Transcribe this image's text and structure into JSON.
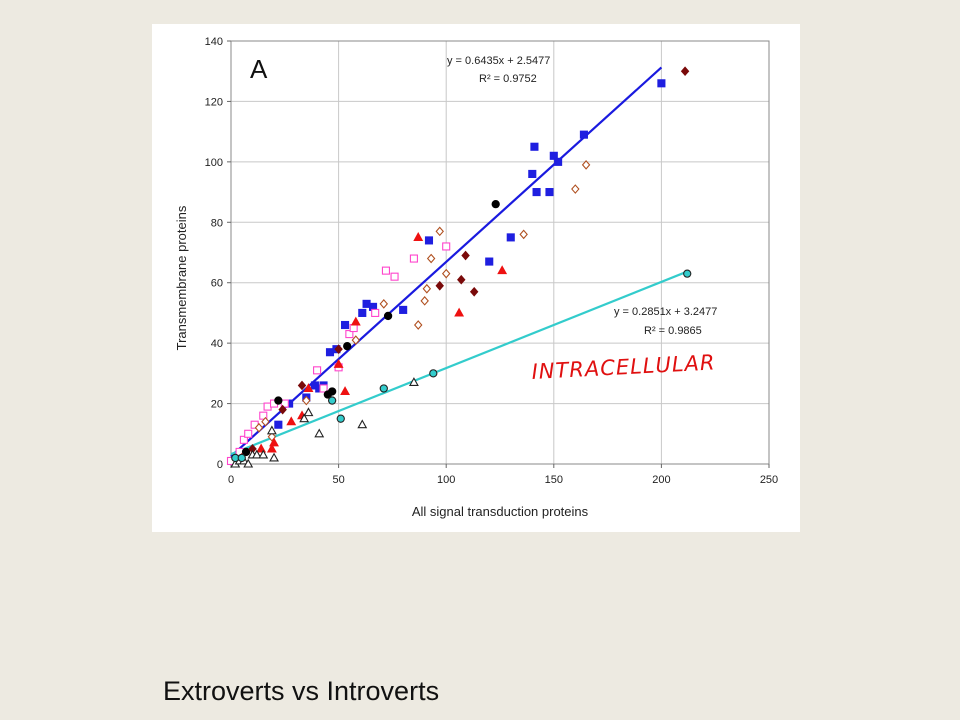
{
  "slide": {
    "caption": "Extroverts vs Introverts"
  },
  "chart_data": {
    "type": "scatter",
    "panel_label": "A",
    "xlabel": "All signal transduction proteins",
    "ylabel": "Transmembrane proteins",
    "xlim": [
      0,
      250
    ],
    "ylim": [
      0,
      140
    ],
    "x_ticks": [
      0,
      50,
      100,
      150,
      200,
      250
    ],
    "y_ticks": [
      0,
      20,
      40,
      60,
      80,
      100,
      120,
      140
    ],
    "grid": true,
    "annotations": {
      "eq_top": "y = 0.6435x + 2.5477",
      "r2_top": "R² = 0.9752",
      "eq_bottom": "y = 0.2851x + 3.2477",
      "r2_bottom": "R² = 0.9865",
      "handwritten": "INTRACELLULAR"
    },
    "trendlines": [
      {
        "slope": 0.6435,
        "intercept": 2.5477,
        "x_range": [
          0,
          200
        ],
        "color": "#1a1adf"
      },
      {
        "slope": 0.2851,
        "intercept": 3.2477,
        "x_range": [
          0,
          212
        ],
        "color": "#33cccc"
      }
    ],
    "series": [
      {
        "marker": "square",
        "color": "#1f1fe0",
        "stroke": "#1f1fe0",
        "fill": "#1f1fe0",
        "points": [
          [
            22,
            13
          ],
          [
            27,
            20
          ],
          [
            35,
            22
          ],
          [
            39,
            26
          ],
          [
            41,
            25
          ],
          [
            43,
            26
          ],
          [
            46,
            37
          ],
          [
            49,
            38
          ],
          [
            53,
            46
          ],
          [
            61,
            50
          ],
          [
            63,
            53
          ],
          [
            66,
            52
          ],
          [
            80,
            51
          ],
          [
            92,
            74
          ],
          [
            120,
            67
          ],
          [
            130,
            75
          ],
          [
            140,
            96
          ],
          [
            141,
            105
          ],
          [
            142,
            90
          ],
          [
            148,
            90
          ],
          [
            150,
            102
          ],
          [
            152,
            100
          ],
          [
            164,
            109
          ],
          [
            200,
            126
          ]
        ]
      },
      {
        "marker": "square-open",
        "color": "#ff44cc",
        "stroke": "#ff44cc",
        "fill": "#ffffff",
        "points": [
          [
            0,
            1
          ],
          [
            4,
            4
          ],
          [
            6,
            8
          ],
          [
            8,
            10
          ],
          [
            11,
            13
          ],
          [
            15,
            16
          ],
          [
            17,
            19
          ],
          [
            20,
            20
          ],
          [
            25,
            20
          ],
          [
            40,
            31
          ],
          [
            43,
            25
          ],
          [
            50,
            32
          ],
          [
            55,
            43
          ],
          [
            57,
            45
          ],
          [
            67,
            50
          ],
          [
            72,
            64
          ],
          [
            85,
            68
          ],
          [
            100,
            72
          ],
          [
            76,
            62
          ]
        ]
      },
      {
        "marker": "circle",
        "color": "#000000",
        "stroke": "#000000",
        "fill": "#000000",
        "points": [
          [
            22,
            21
          ],
          [
            45,
            23
          ],
          [
            47,
            24
          ],
          [
            54,
            39
          ],
          [
            73,
            49
          ],
          [
            123,
            86
          ],
          [
            7,
            4
          ]
        ]
      },
      {
        "marker": "diamond",
        "color": "#7a0a0a",
        "stroke": "#7a0a0a",
        "fill": "#7a0a0a",
        "points": [
          [
            10,
            5
          ],
          [
            24,
            18
          ],
          [
            33,
            26
          ],
          [
            50,
            38
          ],
          [
            97,
            59
          ],
          [
            107,
            61
          ],
          [
            113,
            57
          ],
          [
            109,
            69
          ],
          [
            211,
            130
          ]
        ]
      },
      {
        "marker": "diamond-open",
        "color": "#b05020",
        "stroke": "#b05020",
        "fill": "#ffffff",
        "points": [
          [
            13,
            12
          ],
          [
            16,
            14
          ],
          [
            19,
            9
          ],
          [
            35,
            21
          ],
          [
            58,
            41
          ],
          [
            71,
            53
          ],
          [
            87,
            46
          ],
          [
            90,
            54
          ],
          [
            91,
            58
          ],
          [
            93,
            68
          ],
          [
            97,
            77
          ],
          [
            100,
            63
          ],
          [
            136,
            76
          ],
          [
            160,
            91
          ],
          [
            165,
            99
          ]
        ]
      },
      {
        "marker": "triangle",
        "color": "#ee1111",
        "stroke": "#ee1111",
        "fill": "#ee1111",
        "points": [
          [
            5,
            2
          ],
          [
            10,
            3
          ],
          [
            14,
            5
          ],
          [
            19,
            5
          ],
          [
            28,
            14
          ],
          [
            33,
            16
          ],
          [
            36,
            25
          ],
          [
            53,
            24
          ],
          [
            58,
            47
          ],
          [
            87,
            75
          ],
          [
            106,
            50
          ],
          [
            126,
            64
          ],
          [
            20,
            7
          ],
          [
            50,
            33
          ]
        ]
      },
      {
        "marker": "triangle-open",
        "color": "#222222",
        "stroke": "#222222",
        "fill": "#ffffff",
        "points": [
          [
            2,
            0
          ],
          [
            4,
            1
          ],
          [
            6,
            1
          ],
          [
            8,
            0
          ],
          [
            10,
            3
          ],
          [
            12,
            3
          ],
          [
            15,
            3
          ],
          [
            20,
            2
          ],
          [
            19,
            11
          ],
          [
            34,
            15
          ],
          [
            36,
            17
          ],
          [
            41,
            10
          ],
          [
            61,
            13
          ],
          [
            85,
            27
          ]
        ]
      },
      {
        "marker": "circle-open",
        "color": "#33cccc",
        "stroke": "#222222",
        "fill": "#33cccc",
        "points": [
          [
            2,
            2
          ],
          [
            5,
            2
          ],
          [
            47,
            21
          ],
          [
            51,
            15
          ],
          [
            71,
            25
          ],
          [
            94,
            30
          ],
          [
            212,
            63
          ]
        ]
      }
    ]
  }
}
